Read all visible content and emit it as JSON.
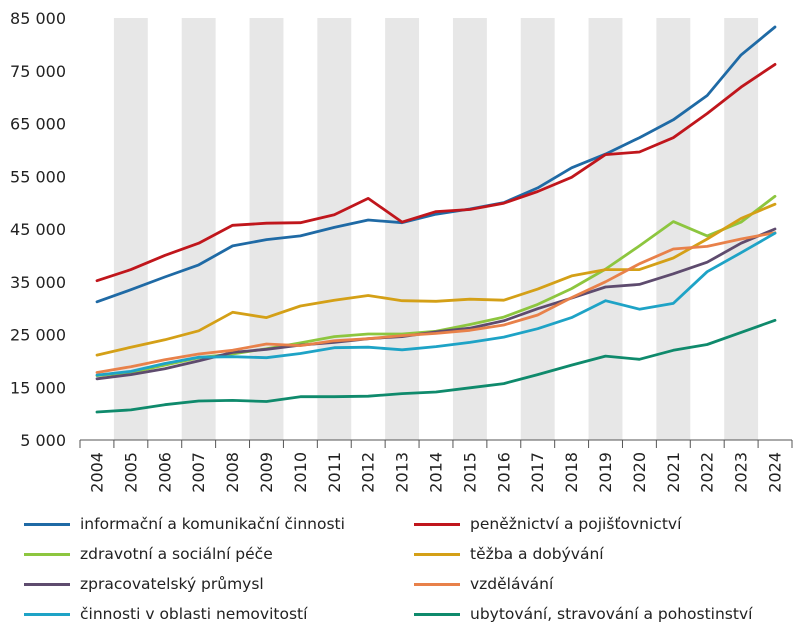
{
  "chart_data": {
    "type": "line",
    "title": "",
    "xlabel": "",
    "ylabel": "",
    "x": [
      "2004",
      "2005",
      "2006",
      "2007",
      "2008",
      "2009",
      "2010",
      "2011",
      "2012",
      "2013",
      "2014",
      "2015",
      "2016",
      "2017",
      "2018",
      "2019",
      "2020",
      "2021",
      "2022",
      "2023",
      "2024"
    ],
    "ylim": [
      5000,
      85000
    ],
    "yticks": [
      5000,
      15000,
      25000,
      35000,
      45000,
      55000,
      65000,
      75000,
      85000
    ],
    "ytick_labels": [
      "5 000",
      "15 000",
      "25 000",
      "35 000",
      "45 000",
      "55 000",
      "65 000",
      "75 000",
      "85 000"
    ],
    "grid": "alternating vertical bands",
    "legend_position": "bottom",
    "series": [
      {
        "name": "informační a komunikační činnosti",
        "color": "#1f6aa5",
        "values": [
          31200,
          33500,
          35900,
          38200,
          41800,
          43000,
          43700,
          45300,
          46700,
          46200,
          47800,
          48800,
          50000,
          52800,
          56600,
          59200,
          62300,
          65700,
          70300,
          78000,
          83300
        ]
      },
      {
        "name": "peněžnictví a pojišťovnictví",
        "color": "#c0161c",
        "values": [
          35200,
          37300,
          40000,
          42300,
          45700,
          46100,
          46200,
          47700,
          50800,
          46300,
          48300,
          48700,
          49900,
          52100,
          54800,
          59100,
          59600,
          62300,
          66900,
          71900,
          76200
        ]
      },
      {
        "name": "zdravotní a sociální péče",
        "color": "#8dc63f",
        "values": [
          17200,
          17800,
          19200,
          20600,
          21300,
          22300,
          23400,
          24600,
          25100,
          25100,
          25600,
          26900,
          28300,
          30700,
          33700,
          37400,
          41800,
          46400,
          43700,
          46300,
          51200
        ]
      },
      {
        "name": "těžba a dobývání",
        "color": "#d4a017",
        "values": [
          21100,
          22600,
          24000,
          25700,
          29200,
          28200,
          30400,
          31500,
          32400,
          31400,
          31300,
          31700,
          31500,
          33600,
          36100,
          37300,
          37300,
          39500,
          43100,
          47000,
          49700
        ]
      },
      {
        "name": "zpracovatelský průmysl",
        "color": "#5e4b6e",
        "values": [
          16600,
          17400,
          18500,
          20000,
          21600,
          22200,
          23000,
          23500,
          24200,
          24600,
          25500,
          26200,
          27600,
          29900,
          31900,
          34000,
          34500,
          36500,
          38700,
          42300,
          45000
        ]
      },
      {
        "name": "vzdělávání",
        "color": "#e8814a",
        "values": [
          17800,
          18900,
          20200,
          21300,
          22000,
          23200,
          22900,
          23800,
          24200,
          24800,
          25200,
          25800,
          26800,
          28700,
          32000,
          35000,
          38400,
          41200,
          41700,
          43100,
          44300
        ]
      },
      {
        "name": "činnosti v oblasti nemovitostí",
        "color": "#1ea3c6",
        "values": [
          17300,
          18000,
          19500,
          20700,
          20800,
          20600,
          21400,
          22500,
          22600,
          22100,
          22700,
          23500,
          24500,
          26100,
          28200,
          31400,
          29800,
          30900,
          36900,
          40500,
          44200
        ]
      },
      {
        "name": "ubytování, stravování a pohostinství",
        "color": "#0f8a6c",
        "values": [
          10300,
          10700,
          11700,
          12400,
          12500,
          12300,
          13200,
          13200,
          13300,
          13800,
          14100,
          14900,
          15700,
          17400,
          19200,
          20900,
          20300,
          22000,
          23100,
          25400,
          27700
        ]
      }
    ]
  }
}
